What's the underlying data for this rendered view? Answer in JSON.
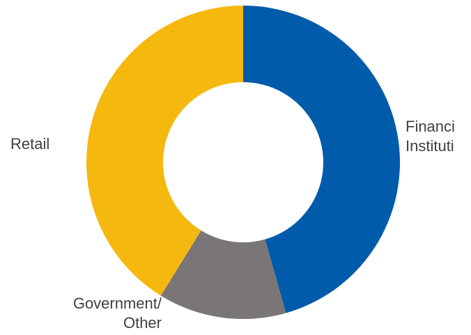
{
  "chart_data": {
    "type": "pie",
    "donut": true,
    "title": "",
    "slices": [
      {
        "label": "Financial Institutions",
        "display_lines": [
          "Financi",
          "Instituti"
        ],
        "value": 45.6,
        "color": "#005BAA"
      },
      {
        "label": "Government/ Other",
        "display_lines": [
          "Government/",
          "Other"
        ],
        "value": 13.2,
        "color": "#7A7677"
      },
      {
        "label": "Retail",
        "display_lines": [
          "Retail"
        ],
        "value": 41.2,
        "color": "#F5B80F"
      }
    ]
  }
}
